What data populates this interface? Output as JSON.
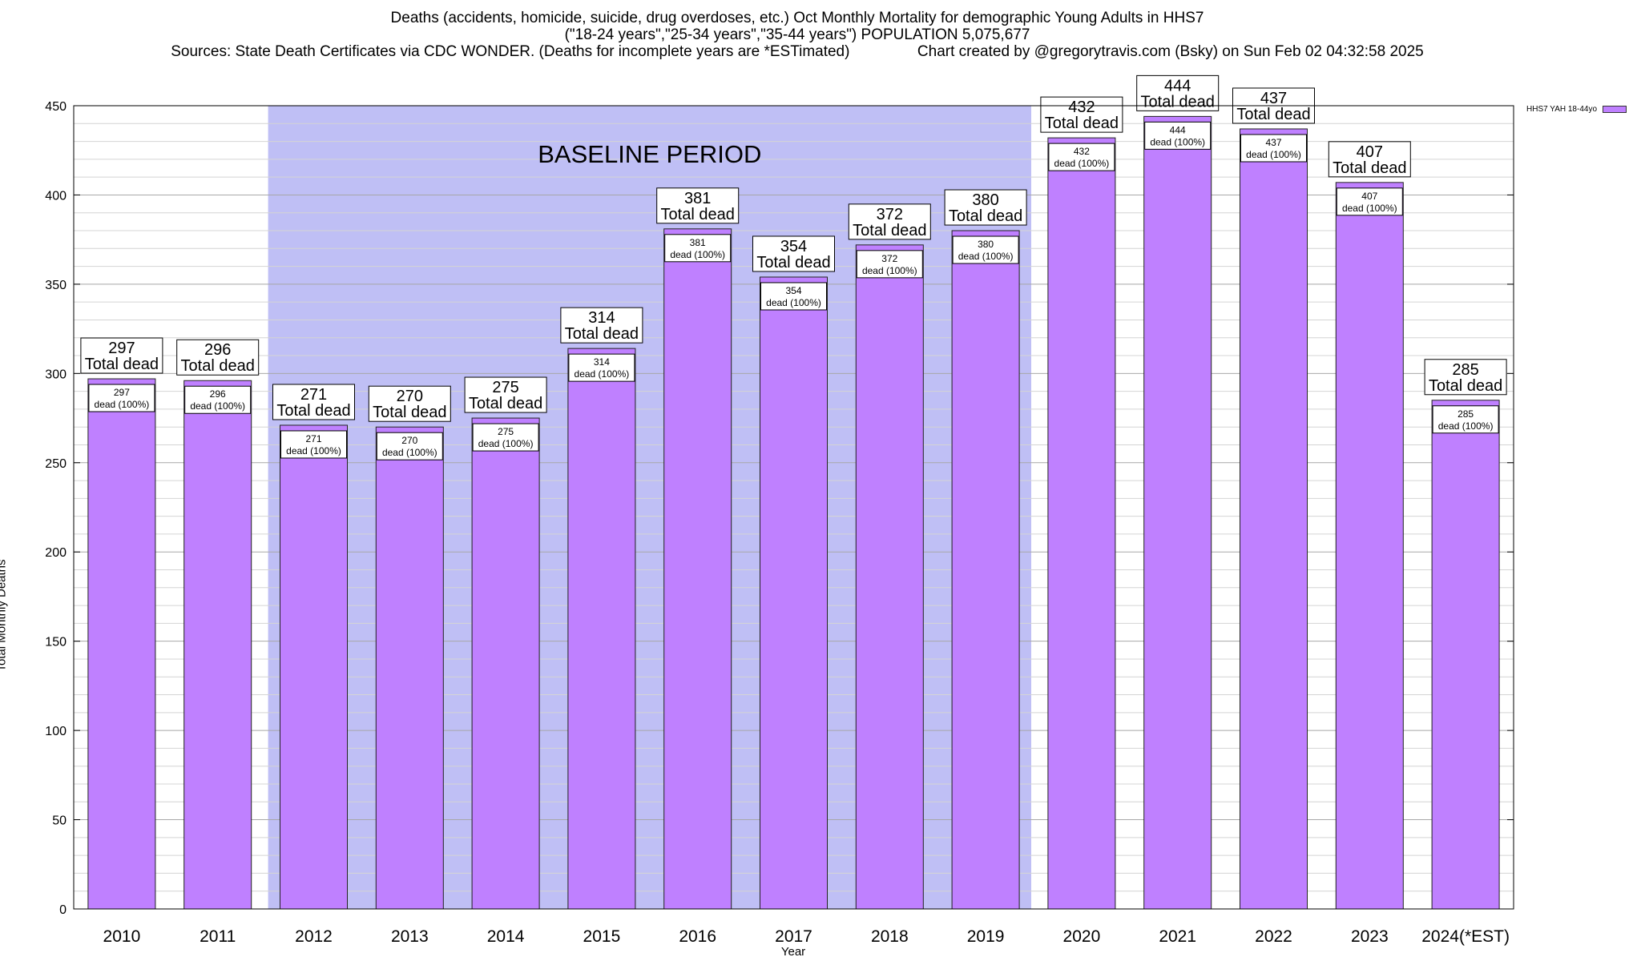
{
  "header": {
    "line1": "Deaths (accidents, homicide, suicide, drug overdoses, etc.) Oct Monthly Mortality for demographic Young Adults in HHS7",
    "line2": "(\"18-24 years\",\"25-34 years\",\"35-44 years\") POPULATION 5,075,677",
    "line3": "Sources: State Death Certificates via CDC WONDER. (Deaths for incomplete years are *ESTimated)                Chart created by @gregorytravis.com (Bsky) on Sun Feb 02 04:32:58 2025"
  },
  "colors": {
    "bar_fill": "#bf80ff",
    "bar_edge": "#222222",
    "baseline_band": "#bfbff5",
    "grid_major": "#a8a8a8",
    "grid_minor": "#d4d4d4"
  },
  "chart_data": {
    "type": "bar",
    "title": "Deaths (accidents, homicide, suicide, drug overdoses, etc.) Oct Monthly Mortality for demographic Young Adults in HHS7",
    "xlabel": "Year",
    "ylabel": "Total Monthly Deaths",
    "ylim": [
      0,
      450
    ],
    "yticks": [
      0,
      50,
      100,
      150,
      200,
      250,
      300,
      350,
      400,
      450
    ],
    "grid": true,
    "legend_position": "top-right",
    "categories": [
      "2010",
      "2011",
      "2012",
      "2013",
      "2014",
      "2015",
      "2016",
      "2017",
      "2018",
      "2019",
      "2020",
      "2021",
      "2022",
      "2023",
      "2024(*EST)"
    ],
    "series": [
      {
        "name": "HHS7 YAH 18-44yo",
        "values": [
          297,
          296,
          271,
          270,
          275,
          314,
          381,
          354,
          372,
          380,
          432,
          444,
          437,
          407,
          285
        ]
      }
    ],
    "annotations": {
      "baseline_label": "BASELINE PERIOD",
      "baseline_from": "2012",
      "baseline_to": "2019",
      "total_suffix": "Total dead",
      "inner_suffix": "dead (100%)"
    }
  }
}
